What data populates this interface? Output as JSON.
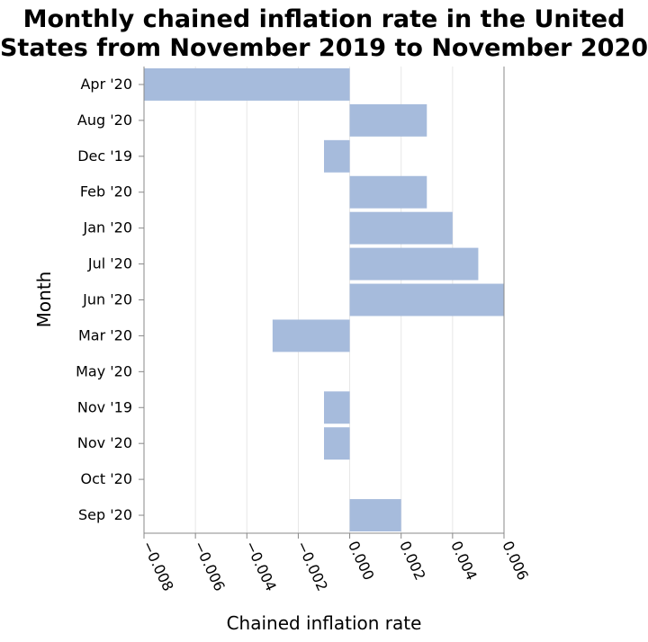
{
  "chart_data": {
    "type": "bar",
    "orientation": "horizontal",
    "title": [
      "Monthly chained inflation rate in the United",
      "States from November 2019 to November 2020"
    ],
    "xlabel": "Chained inflation rate",
    "ylabel": "Month",
    "xlim": [
      -0.008,
      0.006
    ],
    "xticks": [
      "−0.008",
      "−0.006",
      "−0.004",
      "−0.002",
      "0.000",
      "0.002",
      "0.004",
      "0.006"
    ],
    "xtick_values": [
      -0.008,
      -0.006,
      -0.004,
      -0.002,
      0.0,
      0.002,
      0.004,
      0.006
    ],
    "categories": [
      "Apr '20",
      "Aug '20",
      "Dec '19",
      "Feb '20",
      "Jan '20",
      "Jul '20",
      "Jun '20",
      "Mar '20",
      "May '20",
      "Nov '19",
      "Nov '20",
      "Oct '20",
      "Sep '20"
    ],
    "values": [
      -0.008,
      0.003,
      -0.001,
      0.003,
      0.004,
      0.005,
      0.006,
      -0.003,
      0.0,
      -0.001,
      -0.001,
      0.0,
      0.002
    ],
    "bar_color": "#a6bbdc",
    "grid": true,
    "legend": "none"
  }
}
